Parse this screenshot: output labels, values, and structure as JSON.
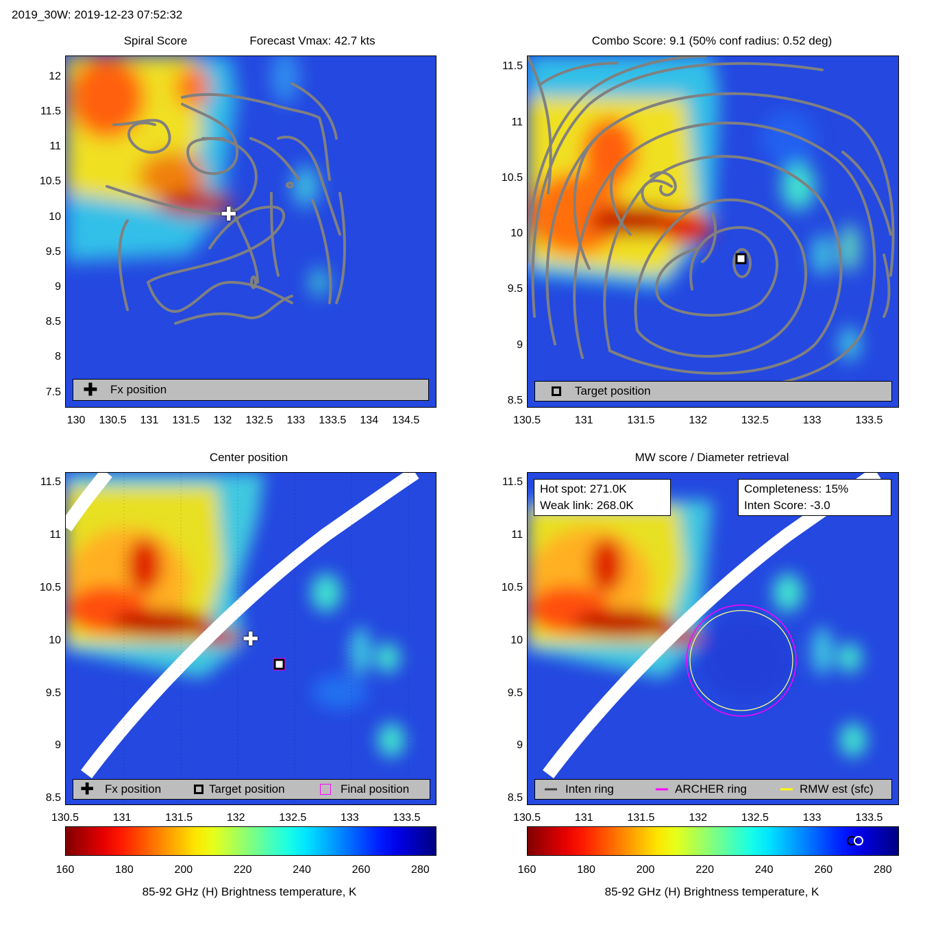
{
  "header": {
    "title": "2019_30W: 2019-12-23 07:52:32"
  },
  "chart_data": [
    {
      "type": "heatmap",
      "title_left": "Spiral Score",
      "title_right": "Forecast Vmax: 42.7 kts",
      "xlim": [
        129.85,
        134.9
      ],
      "ylim": [
        7.3,
        12.3
      ],
      "xticks": [
        130,
        130.5,
        131,
        131.5,
        132,
        132.5,
        133,
        133.5,
        134,
        134.5
      ],
      "yticks": [
        7.5,
        8,
        8.5,
        9,
        9.5,
        10,
        10.5,
        11,
        11.5,
        12
      ],
      "legend": [
        {
          "label": "Fx position",
          "marker": "plus"
        }
      ],
      "markers": [
        {
          "name": "Fx position",
          "x": 132.1,
          "y": 10.05
        }
      ]
    },
    {
      "type": "heatmap",
      "title": "Combo Score: 9.1  (50% conf radius: 0.52 deg)",
      "xlim": [
        130.5,
        133.75
      ],
      "ylim": [
        8.45,
        11.6
      ],
      "xticks": [
        130.5,
        131,
        131.5,
        132,
        132.5,
        133,
        133.5
      ],
      "yticks": [
        8.5,
        9,
        9.5,
        10,
        10.5,
        11,
        11.5
      ],
      "legend": [
        {
          "label": "Target position",
          "marker": "square"
        }
      ],
      "markers": [
        {
          "name": "Target position",
          "x": 132.36,
          "y": 9.8
        }
      ]
    },
    {
      "type": "heatmap",
      "title": "Center position",
      "xlim": [
        130.5,
        133.75
      ],
      "ylim": [
        8.45,
        11.6
      ],
      "xticks": [
        130.5,
        131,
        131.5,
        132,
        132.5,
        133,
        133.5
      ],
      "yticks": [
        8.5,
        9,
        9.5,
        10,
        10.5,
        11,
        11.5
      ],
      "legend": [
        {
          "label": "Fx position",
          "marker": "plus"
        },
        {
          "label": "Target position",
          "marker": "square"
        },
        {
          "label": "Final position",
          "marker": "magenta-square"
        }
      ],
      "markers": [
        {
          "name": "Fx position",
          "x": 132.1,
          "y": 10.03
        },
        {
          "name": "Target position",
          "x": 132.36,
          "y": 9.78
        },
        {
          "name": "Final position",
          "x": 132.36,
          "y": 9.78
        }
      ],
      "colorbar": {
        "ticks": [
          160,
          180,
          200,
          220,
          240,
          260,
          280
        ],
        "range": [
          160,
          285
        ],
        "label": "85-92 GHz (H) Brightness temperature, K"
      }
    },
    {
      "type": "heatmap",
      "title": "MW score / Diameter retrieval",
      "xlim": [
        130.5,
        133.75
      ],
      "ylim": [
        8.45,
        11.6
      ],
      "xticks": [
        130.5,
        131,
        131.5,
        132,
        132.5,
        133,
        133.5
      ],
      "yticks": [
        8.5,
        9,
        9.5,
        10,
        10.5,
        11,
        11.5
      ],
      "legend": [
        {
          "label": "Inten ring",
          "color": "#404040"
        },
        {
          "label": "ARCHER ring",
          "color": "#ff00ff"
        },
        {
          "label": "RMW est (sfc)",
          "color": "#ffff00"
        }
      ],
      "rings": [
        {
          "name": "ARCHER ring",
          "x": 132.38,
          "y": 9.79,
          "rx_deg": 0.48,
          "ry_deg": 0.49,
          "color": "#ff00ff"
        },
        {
          "name": "RMW est (sfc)",
          "x": 132.38,
          "y": 9.79,
          "rx_deg": 0.45,
          "ry_deg": 0.44,
          "color": "#ffff88"
        }
      ],
      "info_left": {
        "hot_spot": "Hot spot: 271.0K",
        "weak_link": "Weak link: 268.0K"
      },
      "info_right": {
        "completeness": "Completeness: 15%",
        "inten_score": "Inten Score: -3.0"
      },
      "colorbar": {
        "ticks": [
          160,
          180,
          200,
          220,
          240,
          260,
          280
        ],
        "range": [
          160,
          285
        ],
        "label": "85-92 GHz (H) Brightness temperature, K",
        "markers": [
          268,
          271
        ]
      }
    }
  ],
  "colors": {
    "background_field": "#1e46e6",
    "cold": "#800000",
    "swath_gap": "#ffffff",
    "contour": "#808080"
  }
}
